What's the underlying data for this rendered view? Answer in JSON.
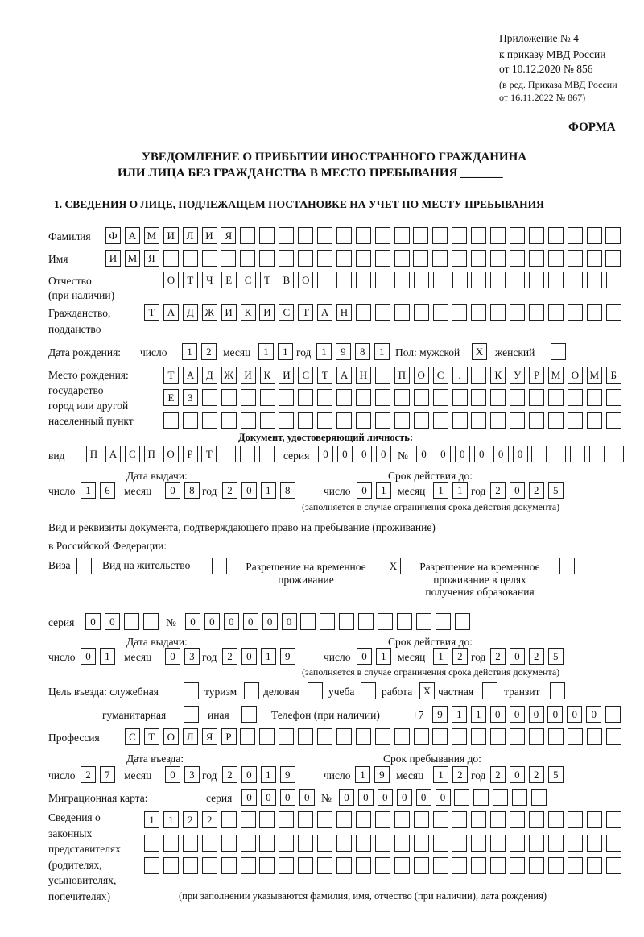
{
  "header": {
    "appendix": "Приложение № 4",
    "order": "к приказу МВД России",
    "order_date": "от 10.12.2020 № 856",
    "edit1": "(в ред. Приказа МВД России",
    "edit2": "от 16.11.2022 № 867)",
    "forma": "ФОРМА",
    "title1": "УВЕДОМЛЕНИЕ О ПРИБЫТИИ ИНОСТРАННОГО ГРАЖДАНИНА",
    "title2": "ИЛИ ЛИЦА БЕЗ ГРАЖДАНСТВА В МЕСТО ПРЕБЫВАНИЯ",
    "title_blank": "_______",
    "section1": "1. СВЕДЕНИЯ О ЛИЦЕ, ПОДЛЕЖАЩЕМ ПОСТАНОВКЕ НА УЧЕТ ПО МЕСТУ ПРЕБЫВАНИЯ"
  },
  "labels": {
    "surname": "Фамилия",
    "name": "Имя",
    "patronymic": "Отчество",
    "patronymic2": "(при наличии)",
    "citizenship": "Гражданство,",
    "citizenship2": "подданство",
    "birth_date": "Дата рождения:",
    "day": "число",
    "month": "месяц",
    "year": "год",
    "sex": "Пол: мужской",
    "female": "женский",
    "birthplace": "Место рождения:",
    "birthplace2": "государство",
    "birthplace3": "город или другой",
    "birthplace4": "населенный пункт",
    "id_doc": "Документ, удостоверяющий личность:",
    "kind": "вид",
    "series": "серия",
    "number": "№",
    "issue_date": "Дата выдачи:",
    "valid_until": "Срок действия до:",
    "valid_note": "(заполняется в случае ограничения срока действия документа)",
    "right_doc1": "Вид и реквизиты документа, подтверждающего право на пребывание (проживание)",
    "right_doc2": "в Российской Федерации:",
    "visa": "Виза",
    "residence": "Вид на жительство",
    "trp1": "Разрешение на временное",
    "trp2": "проживание",
    "trpe1": "Разрешение на временное",
    "trpe2": "проживание в целях",
    "trpe3": "получения образования",
    "purpose": "Цель въезда: служебная",
    "tourism": "туризм",
    "business": "деловая",
    "study": "учеба",
    "work": "работа",
    "private": "частная",
    "transit": "транзит",
    "humanitarian": "гуманитарная",
    "other": "иная",
    "phone": "Телефон (при наличии)",
    "phone_prefix": "+7",
    "profession": "Профессия",
    "entry_date": "Дата въезда:",
    "stay_until": "Срок пребывания до:",
    "migration_card": "Миграционная карта:",
    "reps1": "Сведения о",
    "reps2": "законных",
    "reps3": "представителях",
    "reps4": "(родителях,",
    "reps5": "усыновителях,",
    "reps6": "попечителях)",
    "reps_note": "(при заполнении указываются фамилия, имя, отчество (при наличии), дата рождения)"
  },
  "person": {
    "surname": "ФАМИЛИЯ",
    "name": "ИМЯ",
    "patronymic": "ОТЧЕСТВО",
    "citizenship": "ТАДЖИКИСТАН",
    "birth_day": "12",
    "birth_month": "11",
    "birth_year": "1981",
    "sex_male": "X",
    "sex_female": "",
    "birthplace1": "ТАДЖИКИСТАН ПОС. КУРМОМБ",
    "birthplace2": "ЕЗ",
    "birthplace3": ""
  },
  "id_document": {
    "kind": "ПАСПОРТ",
    "series": "0000",
    "number": "000000",
    "issue_day": "16",
    "issue_month": "08",
    "issue_year": "2018",
    "valid_day": "01",
    "valid_month": "11",
    "valid_year": "2025"
  },
  "right_document": {
    "visa": "",
    "residence_permit": "",
    "temporary_residence": "X",
    "temporary_residence_education": "",
    "series": "00",
    "number": "000000",
    "issue_day": "01",
    "issue_month": "03",
    "issue_year": "2019",
    "valid_day": "01",
    "valid_month": "12",
    "valid_year": "2025"
  },
  "purpose": {
    "official": "",
    "tourism": "",
    "business": "",
    "study": "",
    "work": "X",
    "private": "",
    "transit": "",
    "humanitarian": "",
    "other": ""
  },
  "phone": "911000000",
  "profession": "СТОЛЯР",
  "entry": {
    "entry_day": "27",
    "entry_month": "03",
    "entry_year": "2019",
    "stay_day": "19",
    "stay_month": "12",
    "stay_year": "2025"
  },
  "migration_card": {
    "series": "0000",
    "number": "000000"
  },
  "representatives": {
    "line1": "1122",
    "line2": "",
    "line3": ""
  }
}
